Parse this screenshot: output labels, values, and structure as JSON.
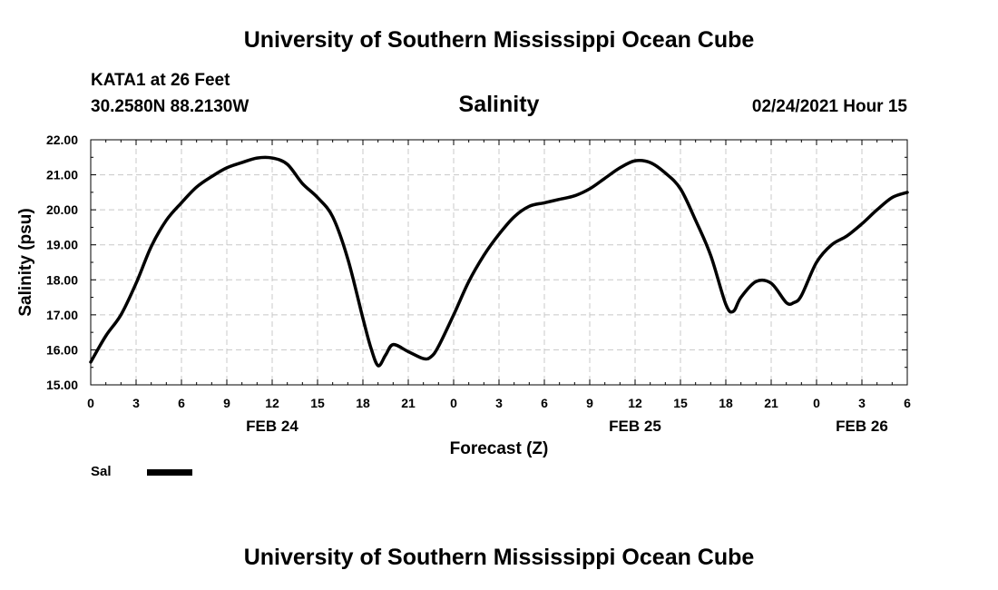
{
  "header": {
    "title": "University of Southern Mississippi Ocean Cube",
    "station": "KATA1 at 26 Feet",
    "coordinates": "30.2580N 88.2130W",
    "timestamp": "02/24/2021 Hour 15"
  },
  "footer": {
    "title": "University of Southern Mississippi Ocean Cube"
  },
  "legend": {
    "label": "Sal"
  },
  "chart_data": {
    "type": "line",
    "title": "Salinity",
    "xlabel": "Forecast (Z)",
    "ylabel": "Salinity (psu)",
    "x_unit": "hours from 00Z FEB 24",
    "xlim": [
      0,
      54
    ],
    "ylim": [
      15,
      22
    ],
    "y_ticks": [
      "15.00",
      "16.00",
      "17.00",
      "18.00",
      "19.00",
      "20.00",
      "21.00",
      "22.00"
    ],
    "x_ticks": [
      {
        "hour": 0,
        "label": "0"
      },
      {
        "hour": 3,
        "label": "3"
      },
      {
        "hour": 6,
        "label": "6"
      },
      {
        "hour": 9,
        "label": "9"
      },
      {
        "hour": 12,
        "label": "12"
      },
      {
        "hour": 15,
        "label": "15"
      },
      {
        "hour": 18,
        "label": "18"
      },
      {
        "hour": 21,
        "label": "21"
      },
      {
        "hour": 24,
        "label": "0"
      },
      {
        "hour": 27,
        "label": "3"
      },
      {
        "hour": 30,
        "label": "6"
      },
      {
        "hour": 33,
        "label": "9"
      },
      {
        "hour": 36,
        "label": "12"
      },
      {
        "hour": 39,
        "label": "15"
      },
      {
        "hour": 42,
        "label": "18"
      },
      {
        "hour": 45,
        "label": "21"
      },
      {
        "hour": 48,
        "label": "0"
      },
      {
        "hour": 51,
        "label": "3"
      },
      {
        "hour": 54,
        "label": "6"
      }
    ],
    "day_labels": [
      {
        "hour": 12,
        "label": "FEB 24"
      },
      {
        "hour": 36,
        "label": "FEB 25"
      },
      {
        "hour": 51,
        "label": "FEB 26"
      }
    ],
    "grid": true,
    "series": [
      {
        "name": "Sal",
        "color": "#000000",
        "x": [
          0,
          1,
          2,
          3,
          4,
          5,
          6,
          7,
          8,
          9,
          10,
          11,
          12,
          13,
          14,
          15,
          16,
          17,
          18,
          18.5,
          19,
          19.5,
          20,
          21,
          22,
          22.5,
          23,
          24,
          25,
          26,
          27,
          28,
          29,
          30,
          31,
          32,
          33,
          34,
          35,
          36,
          37,
          38,
          39,
          40,
          41,
          42,
          42.5,
          43,
          44,
          45,
          46,
          46.5,
          47,
          48,
          49,
          50,
          51,
          52,
          53,
          54
        ],
        "values": [
          15.65,
          16.4,
          17.0,
          17.9,
          18.95,
          19.7,
          20.2,
          20.65,
          20.95,
          21.2,
          21.35,
          21.48,
          21.48,
          21.3,
          20.75,
          20.35,
          19.8,
          18.6,
          16.9,
          16.1,
          15.55,
          15.85,
          16.15,
          15.95,
          15.75,
          15.8,
          16.1,
          17.0,
          17.95,
          18.7,
          19.3,
          19.8,
          20.1,
          20.2,
          20.3,
          20.4,
          20.6,
          20.9,
          21.2,
          21.4,
          21.35,
          21.05,
          20.6,
          19.7,
          18.7,
          17.3,
          17.1,
          17.5,
          17.95,
          17.9,
          17.35,
          17.35,
          17.55,
          18.5,
          19.0,
          19.25,
          19.6,
          20.0,
          20.35,
          20.5
        ]
      }
    ]
  }
}
